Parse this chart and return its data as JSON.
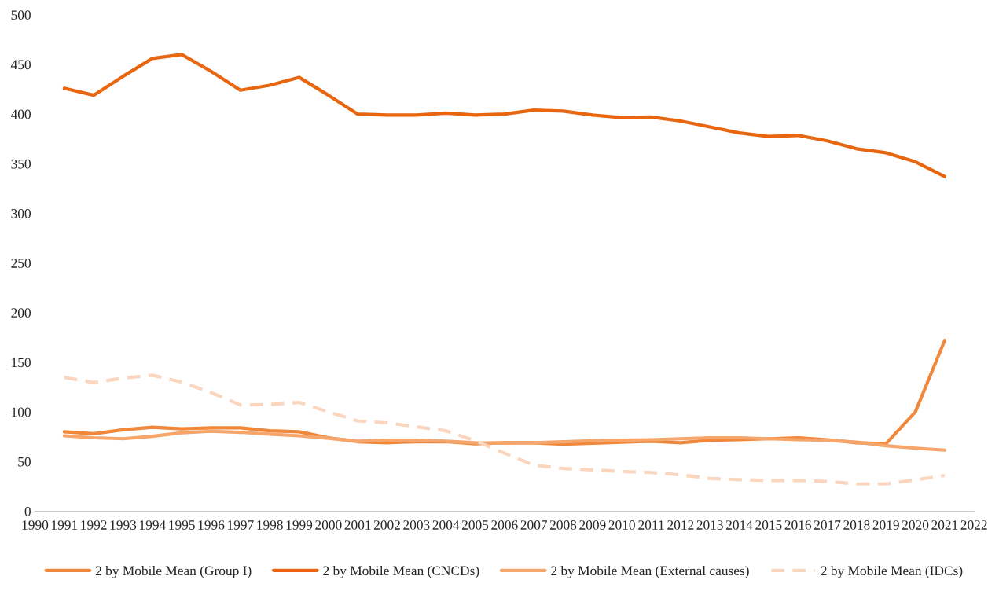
{
  "chart_data": {
    "type": "line",
    "x": [
      1991,
      1992,
      1993,
      1994,
      1995,
      1996,
      1997,
      1998,
      1999,
      2000,
      2001,
      2002,
      2003,
      2004,
      2005,
      2006,
      2007,
      2008,
      2009,
      2010,
      2011,
      2012,
      2013,
      2014,
      2015,
      2016,
      2017,
      2018,
      2019,
      2020,
      2021
    ],
    "series": [
      {
        "name": "2 by Mobile Mean (Group I)",
        "color": "#f0883c",
        "values": [
          80,
          78,
          82,
          84.6,
          83,
          84,
          84,
          81,
          80,
          74,
          70,
          69,
          70,
          70,
          68,
          69,
          69,
          67.6,
          68.5,
          69.5,
          70.5,
          69,
          71.5,
          72,
          73,
          74,
          72,
          69,
          68,
          100,
          172
        ]
      },
      {
        "name": "2 by Mobile Mean (CNCDs)",
        "color": "#e8660f",
        "values": [
          426,
          419,
          438,
          456,
          460,
          443,
          424,
          429,
          437,
          419,
          400,
          399,
          399,
          401,
          399,
          400,
          404,
          403,
          399,
          396.5,
          397,
          393,
          387,
          381,
          377.5,
          378.5,
          373,
          365,
          361,
          352,
          337
        ]
      },
      {
        "name": "2 by Mobile Mean (External causes)",
        "color": "#f6a56b",
        "values": [
          76,
          74,
          73,
          75.5,
          79,
          80.5,
          79.5,
          77.6,
          76,
          73.5,
          70.5,
          71.5,
          71.5,
          70.5,
          69,
          68.5,
          69,
          70,
          71,
          71.5,
          72,
          73,
          74,
          74,
          73,
          72,
          71.5,
          69.5,
          66,
          63.5,
          61.5
        ]
      },
      {
        "name": "2 by Mobile Mean (IDCs)",
        "color": "#fbd6bf",
        "line_style": "dashed",
        "values": [
          134.7,
          129.6,
          134,
          137,
          130,
          119.5,
          107,
          107.4,
          109.6,
          100,
          91,
          89,
          85,
          81,
          71,
          58.5,
          46.4,
          43,
          41.7,
          40,
          39,
          36.6,
          33,
          31.8,
          31,
          31,
          30,
          27.5,
          27.5,
          31.5,
          36
        ]
      }
    ],
    "xlim": [
      1990,
      2022
    ],
    "xticks": [
      1990,
      1991,
      1992,
      1993,
      1994,
      1995,
      1996,
      1997,
      1998,
      1999,
      2000,
      2001,
      2002,
      2003,
      2004,
      2005,
      2006,
      2007,
      2008,
      2009,
      2010,
      2011,
      2012,
      2013,
      2014,
      2015,
      2016,
      2017,
      2018,
      2019,
      2020,
      2021,
      2022
    ],
    "ylim": [
      0,
      500
    ],
    "yticks": [
      0,
      50,
      100,
      150,
      200,
      250,
      300,
      350,
      400,
      450,
      500
    ],
    "grid": false,
    "legend": "bottom",
    "line_style": "solid"
  }
}
